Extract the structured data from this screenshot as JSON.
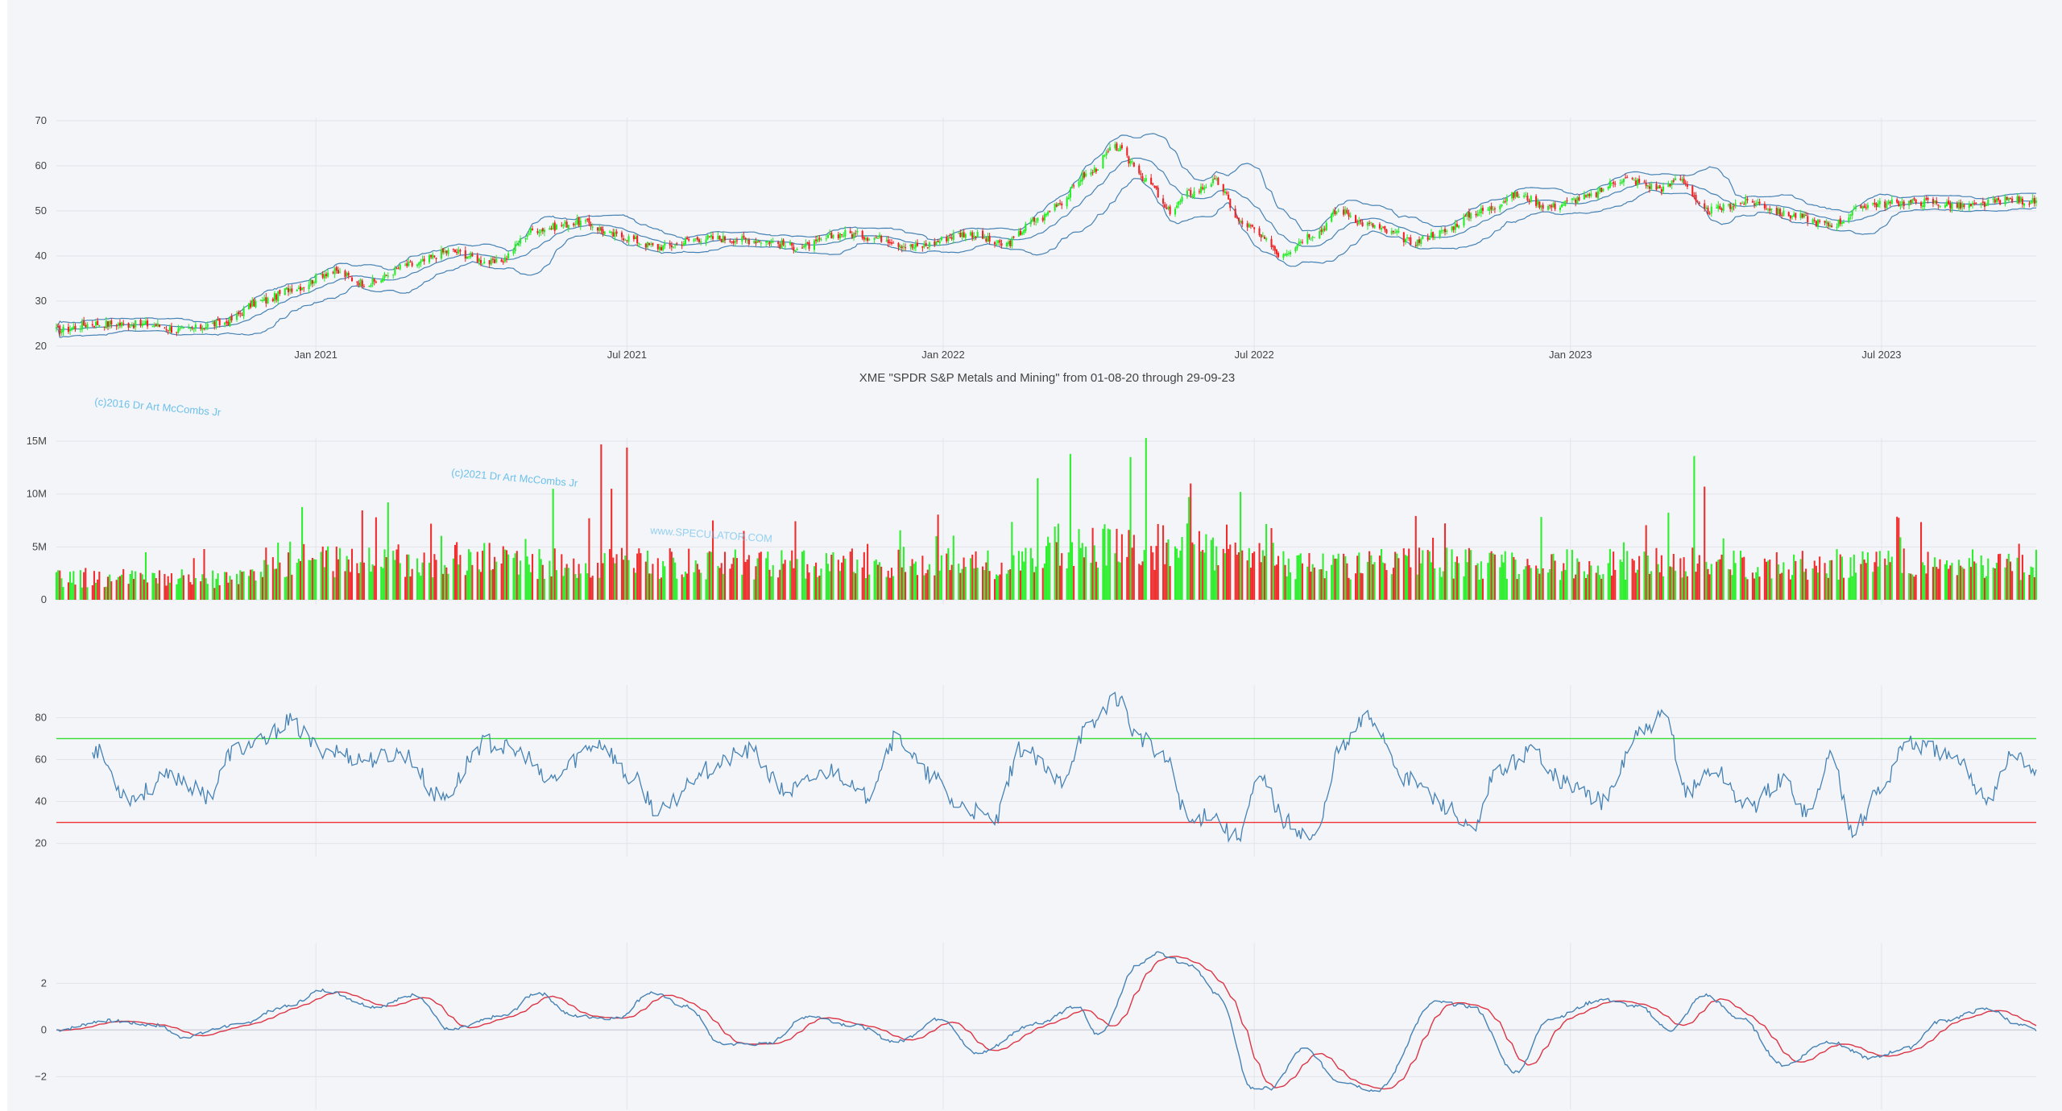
{
  "figure": {
    "title": "XME \"SPDR S&P Metals and Mining\" from 01-08-20 through 29-09-23",
    "watermarks": [
      "(c)2016 Dr Art McCombs Jr",
      "(c)2021 Dr Art McCombs Jr",
      "www.SPECULATOR.COM"
    ],
    "x_ticks": [
      "Jan 2021",
      "Jul 2021",
      "Jan 2022",
      "Jul 2022",
      "Jan 2023",
      "Jul 2023"
    ],
    "colors": {
      "up": "#22ee22",
      "down": "#ee2222",
      "line": "#4682b4",
      "signal": "#dc3545",
      "overbought": "#33dd33",
      "oversold": "#ee3333",
      "grid": "#e2e4ea",
      "background": "#f4f5f9"
    }
  },
  "chart_data": [
    {
      "type": "candlestick",
      "panel": "price",
      "y_ticks": [
        "20",
        "30",
        "40",
        "50",
        "60",
        "70"
      ],
      "ylim": [
        20,
        70
      ],
      "series": [
        {
          "name": "",
          "indicator": "bollinger-bands"
        }
      ],
      "x_range": [
        "2020-08-03",
        "2023-09-29"
      ],
      "close_anchors": [
        [
          "2020-08-03",
          23.5
        ],
        [
          "2020-08-25",
          25.0
        ],
        [
          "2020-09-25",
          24.8
        ],
        [
          "2020-10-15",
          23.5
        ],
        [
          "2020-11-06",
          25.0
        ],
        [
          "2020-12-01",
          30.0
        ],
        [
          "2020-12-20",
          33.0
        ],
        [
          "2021-01-10",
          36.5
        ],
        [
          "2021-01-31",
          34.0
        ],
        [
          "2021-02-25",
          38.0
        ],
        [
          "2021-03-20",
          41.0
        ],
        [
          "2021-04-15",
          38.5
        ],
        [
          "2021-05-10",
          46.0
        ],
        [
          "2021-06-05",
          47.5
        ],
        [
          "2021-06-25",
          44.5
        ],
        [
          "2021-07-20",
          42.0
        ],
        [
          "2021-08-15",
          44.0
        ],
        [
          "2021-09-15",
          43.5
        ],
        [
          "2021-10-10",
          42.0
        ],
        [
          "2021-11-05",
          45.0
        ],
        [
          "2021-11-25",
          44.0
        ],
        [
          "2021-12-15",
          42.0
        ],
        [
          "2022-01-15",
          45.0
        ],
        [
          "2022-02-05",
          42.5
        ],
        [
          "2022-02-25",
          48.0
        ],
        [
          "2022-03-10",
          52.0
        ],
        [
          "2022-03-25",
          58.0
        ],
        [
          "2022-04-12",
          64.0
        ],
        [
          "2022-04-20",
          61.0
        ],
        [
          "2022-05-01",
          56.0
        ],
        [
          "2022-05-12",
          50.0
        ],
        [
          "2022-05-25",
          54.0
        ],
        [
          "2022-06-08",
          56.5
        ],
        [
          "2022-06-25",
          47.0
        ],
        [
          "2022-07-10",
          43.0
        ],
        [
          "2022-07-15",
          40.5
        ],
        [
          "2022-08-05",
          45.0
        ],
        [
          "2022-08-20",
          50.0
        ],
        [
          "2022-09-05",
          47.0
        ],
        [
          "2022-09-20",
          45.0
        ],
        [
          "2022-10-01",
          43.0
        ],
        [
          "2022-10-15",
          45.0
        ],
        [
          "2022-11-10",
          50.0
        ],
        [
          "2022-12-01",
          53.5
        ],
        [
          "2022-12-20",
          51.0
        ],
        [
          "2023-01-10",
          53.0
        ],
        [
          "2023-01-31",
          57.0
        ],
        [
          "2023-02-25",
          55.0
        ],
        [
          "2023-03-05",
          57.5
        ],
        [
          "2023-03-20",
          50.0
        ],
        [
          "2023-04-15",
          52.0
        ],
        [
          "2023-05-10",
          49.0
        ],
        [
          "2023-06-01",
          47.0
        ],
        [
          "2023-06-25",
          51.5
        ],
        [
          "2023-07-25",
          52.0
        ],
        [
          "2023-08-20",
          51.0
        ],
        [
          "2023-09-15",
          52.5
        ],
        [
          "2023-09-29",
          52.0
        ]
      ]
    },
    {
      "type": "bar",
      "panel": "volume",
      "y_ticks": [
        "0",
        "5M",
        "10M",
        "15M"
      ],
      "ylim": [
        0,
        15000000
      ],
      "series": [
        {
          "name": "",
          "spikes": [
            [
              "2021-06-16",
              14700000
            ],
            [
              "2021-07-01",
              14400000
            ],
            [
              "2021-06-22",
              10500000
            ],
            [
              "2021-05-19",
              10500000
            ],
            [
              "2022-03-16",
              13800000
            ],
            [
              "2022-04-20",
              13500000
            ],
            [
              "2022-04-29",
              15300000
            ],
            [
              "2022-05-25",
              11000000
            ],
            [
              "2022-06-23",
              10200000
            ],
            [
              "2023-03-14",
              13600000
            ],
            [
              "2023-03-20",
              10700000
            ],
            [
              "2022-02-25",
              11500000
            ],
            [
              "2021-02-05",
              7800000
            ],
            [
              "2021-08-20",
              7500000
            ]
          ]
        }
      ]
    },
    {
      "type": "line",
      "panel": "rsi",
      "y_ticks": [
        "20",
        "40",
        "60",
        "80"
      ],
      "ylim": [
        16,
        94
      ],
      "reference_lines": [
        70,
        30
      ],
      "series": [
        {
          "name": "",
          "anchors": [
            [
              "2020-08-24",
              65
            ],
            [
              "2020-09-15",
              42
            ],
            [
              "2020-10-10",
              52
            ],
            [
              "2020-10-30",
              43
            ],
            [
              "2020-11-15",
              65
            ],
            [
              "2020-12-01",
              68
            ],
            [
              "2020-12-15",
              78
            ],
            [
              "2021-01-05",
              65
            ],
            [
              "2021-01-31",
              60
            ],
            [
              "2021-02-20",
              63
            ],
            [
              "2021-03-15",
              42
            ],
            [
              "2021-04-10",
              68
            ],
            [
              "2021-05-01",
              63
            ],
            [
              "2021-05-15",
              50
            ],
            [
              "2021-06-15",
              68
            ],
            [
              "2021-07-05",
              50
            ],
            [
              "2021-07-20",
              35
            ],
            [
              "2021-08-15",
              55
            ],
            [
              "2021-09-10",
              64
            ],
            [
              "2021-10-01",
              45
            ],
            [
              "2021-10-30",
              55
            ],
            [
              "2021-11-15",
              42
            ],
            [
              "2021-12-05",
              70
            ],
            [
              "2021-12-25",
              52
            ],
            [
              "2022-01-10",
              38
            ],
            [
              "2022-01-31",
              31
            ],
            [
              "2022-02-15",
              65
            ],
            [
              "2022-03-10",
              50
            ],
            [
              "2022-03-25",
              74
            ],
            [
              "2022-04-12",
              90
            ],
            [
              "2022-04-25",
              70
            ],
            [
              "2022-05-10",
              60
            ],
            [
              "2022-05-25",
              30
            ],
            [
              "2022-06-05",
              35
            ],
            [
              "2022-06-20",
              23
            ],
            [
              "2022-07-05",
              50
            ],
            [
              "2022-07-20",
              30
            ],
            [
              "2022-08-05",
              22
            ],
            [
              "2022-08-20",
              65
            ],
            [
              "2022-09-05",
              80
            ],
            [
              "2022-09-30",
              50
            ],
            [
              "2022-10-20",
              38
            ],
            [
              "2022-11-05",
              25
            ],
            [
              "2022-11-20",
              55
            ],
            [
              "2022-12-10",
              64
            ],
            [
              "2022-12-31",
              48
            ],
            [
              "2023-01-20",
              40
            ],
            [
              "2023-02-10",
              72
            ],
            [
              "2023-02-25",
              80
            ],
            [
              "2023-03-10",
              45
            ],
            [
              "2023-03-25",
              55
            ],
            [
              "2023-04-15",
              38
            ],
            [
              "2023-05-05",
              50
            ],
            [
              "2023-05-20",
              34
            ],
            [
              "2023-06-01",
              62
            ],
            [
              "2023-06-15",
              27
            ],
            [
              "2023-06-30",
              45
            ],
            [
              "2023-07-15",
              68
            ],
            [
              "2023-07-31",
              65
            ],
            [
              "2023-08-15",
              58
            ],
            [
              "2023-09-01",
              42
            ],
            [
              "2023-09-15",
              62
            ],
            [
              "2023-09-29",
              55
            ]
          ]
        }
      ]
    },
    {
      "type": "line",
      "panel": "macd",
      "y_ticks": [
        "2",
        "0",
        "−2"
      ],
      "ylim": [
        -3.4,
        3.6
      ],
      "series": [
        {
          "name": "",
          "color": "#4682b4",
          "anchors": [
            [
              "2020-08-03",
              0.0
            ],
            [
              "2020-09-01",
              0.4
            ],
            [
              "2020-10-01",
              0.2
            ],
            [
              "2020-10-15",
              -0.3
            ],
            [
              "2020-11-15",
              0.2
            ],
            [
              "2020-12-15",
              1.0
            ],
            [
              "2021-01-05",
              1.7
            ],
            [
              "2021-02-05",
              1.0
            ],
            [
              "2021-02-28",
              1.5
            ],
            [
              "2021-03-20",
              0.0
            ],
            [
              "2021-04-20",
              0.6
            ],
            [
              "2021-05-10",
              1.6
            ],
            [
              "2021-05-31",
              0.6
            ],
            [
              "2021-06-25",
              0.5
            ],
            [
              "2021-07-15",
              1.6
            ],
            [
              "2021-08-05",
              1.0
            ],
            [
              "2021-08-25",
              -0.6
            ],
            [
              "2021-09-20",
              -0.6
            ],
            [
              "2021-10-15",
              0.6
            ],
            [
              "2021-11-10",
              0.2
            ],
            [
              "2021-12-05",
              -0.5
            ],
            [
              "2021-12-31",
              0.5
            ],
            [
              "2022-01-20",
              -1.0
            ],
            [
              "2022-02-25",
              0.3
            ],
            [
              "2022-03-20",
              1.0
            ],
            [
              "2022-04-01",
              -0.2
            ],
            [
              "2022-04-25",
              2.8
            ],
            [
              "2022-05-05",
              3.3
            ],
            [
              "2022-05-25",
              2.8
            ],
            [
              "2022-06-10",
              1.5
            ],
            [
              "2022-06-30",
              -2.5
            ],
            [
              "2022-07-10",
              -2.5
            ],
            [
              "2022-07-30",
              -0.8
            ],
            [
              "2022-08-20",
              -2.2
            ],
            [
              "2022-09-10",
              -2.6
            ],
            [
              "2022-10-15",
              1.2
            ],
            [
              "2022-11-05",
              1.0
            ],
            [
              "2022-11-30",
              -1.8
            ],
            [
              "2022-12-20",
              0.5
            ],
            [
              "2023-01-20",
              1.3
            ],
            [
              "2023-02-10",
              1.0
            ],
            [
              "2023-02-28",
              0.0
            ],
            [
              "2023-03-20",
              1.5
            ],
            [
              "2023-04-10",
              0.5
            ],
            [
              "2023-05-05",
              -1.5
            ],
            [
              "2023-05-31",
              -0.5
            ],
            [
              "2023-06-25",
              -1.2
            ],
            [
              "2023-07-15",
              -0.8
            ],
            [
              "2023-08-05",
              0.4
            ],
            [
              "2023-09-01",
              0.9
            ],
            [
              "2023-09-20",
              0.2
            ],
            [
              "2023-09-29",
              0.0
            ]
          ]
        },
        {
          "name": "",
          "color": "#dc3545",
          "lag_days": 12
        }
      ]
    }
  ]
}
